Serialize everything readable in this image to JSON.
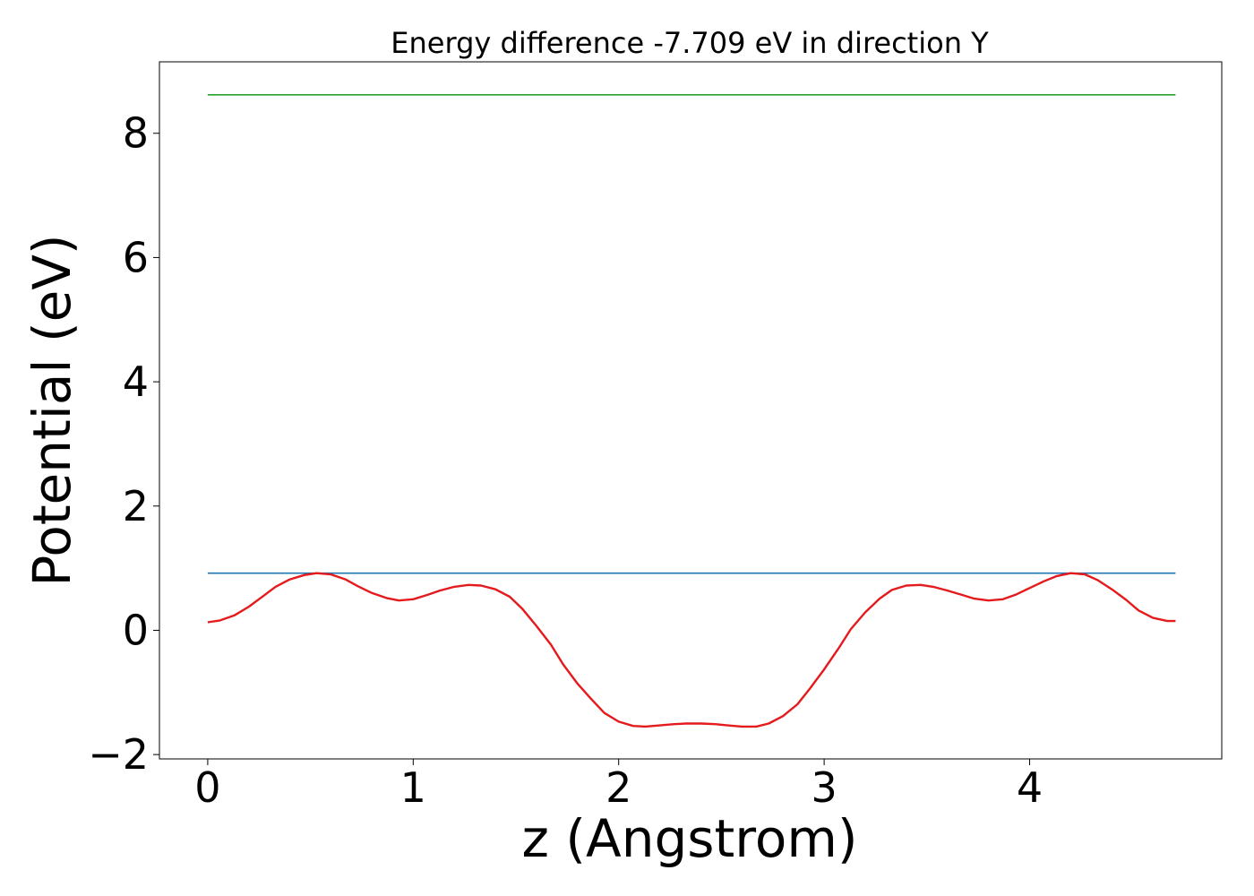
{
  "chart_data": {
    "type": "line",
    "title": "Energy difference -7.709 eV in direction Y",
    "xlabel": "z (Angstrom)",
    "ylabel": "Potential (eV)",
    "xlim": [
      -0.235,
      4.935
    ],
    "ylim": [
      -2.07,
      9.15
    ],
    "xticks": [
      0,
      1,
      2,
      3,
      4
    ],
    "xtick_labels": [
      "0",
      "1",
      "2",
      "3",
      "4"
    ],
    "yticks": [
      -2,
      0,
      2,
      4,
      6,
      8
    ],
    "ytick_labels": [
      "−2",
      "0",
      "2",
      "4",
      "6",
      "8"
    ],
    "grid": false,
    "series": [
      {
        "color": "#2ca02c",
        "x": [
          0,
          4.71
        ],
        "y": [
          8.62,
          8.62
        ]
      },
      {
        "color": "#1f77b4",
        "x": [
          0,
          4.71
        ],
        "y": [
          0.92,
          0.92
        ]
      },
      {
        "color": "#e41a1c",
        "x": [
          0,
          0.06,
          0.13,
          0.2,
          0.27,
          0.33,
          0.4,
          0.47,
          0.53,
          0.6,
          0.67,
          0.73,
          0.8,
          0.87,
          0.93,
          1.0,
          1.07,
          1.13,
          1.2,
          1.27,
          1.33,
          1.4,
          1.47,
          1.53,
          1.6,
          1.67,
          1.73,
          1.8,
          1.87,
          1.93,
          2.0,
          2.07,
          2.13,
          2.2,
          2.27,
          2.33,
          2.4,
          2.47,
          2.53,
          2.6,
          2.67,
          2.73,
          2.8,
          2.87,
          2.93,
          3.0,
          3.07,
          3.13,
          3.2,
          3.27,
          3.33,
          3.4,
          3.47,
          3.53,
          3.6,
          3.67,
          3.73,
          3.8,
          3.87,
          3.93,
          4.0,
          4.07,
          4.13,
          4.2,
          4.27,
          4.33,
          4.4,
          4.47,
          4.53,
          4.6,
          4.67,
          4.71
        ],
        "y": [
          0.13,
          0.16,
          0.24,
          0.38,
          0.55,
          0.7,
          0.82,
          0.89,
          0.92,
          0.9,
          0.82,
          0.71,
          0.6,
          0.52,
          0.48,
          0.5,
          0.57,
          0.64,
          0.7,
          0.73,
          0.72,
          0.66,
          0.54,
          0.35,
          0.07,
          -0.23,
          -0.55,
          -0.86,
          -1.12,
          -1.33,
          -1.47,
          -1.54,
          -1.55,
          -1.53,
          -1.51,
          -1.5,
          -1.5,
          -1.51,
          -1.53,
          -1.55,
          -1.55,
          -1.5,
          -1.38,
          -1.19,
          -0.94,
          -0.63,
          -0.29,
          0.02,
          0.29,
          0.51,
          0.65,
          0.72,
          0.73,
          0.7,
          0.64,
          0.57,
          0.51,
          0.48,
          0.5,
          0.57,
          0.68,
          0.79,
          0.87,
          0.92,
          0.9,
          0.81,
          0.66,
          0.49,
          0.32,
          0.2,
          0.15,
          0.15
        ]
      }
    ]
  }
}
